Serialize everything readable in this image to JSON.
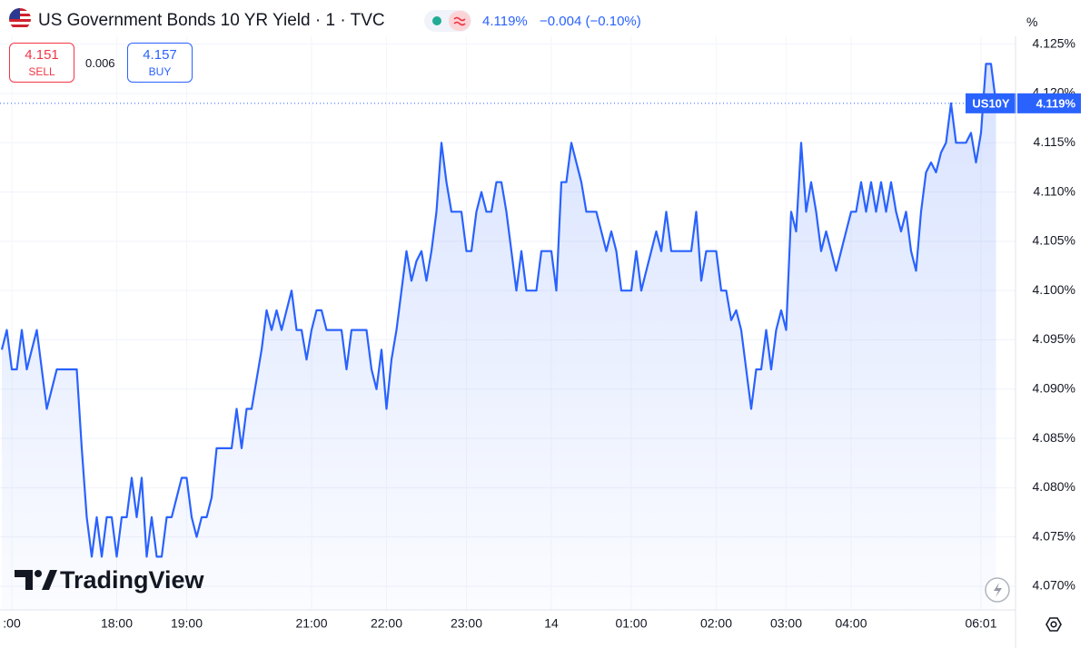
{
  "header": {
    "title": "US Government Bonds 10 YR Yield · 1 · TVC",
    "last": "4.119%",
    "change": "−0.004 (−0.10%)",
    "sell_price": "4.151",
    "sell_label": "SELL",
    "spread": "0.006",
    "buy_price": "4.157",
    "buy_label": "BUY",
    "unit": "%",
    "branding": "TradingView"
  },
  "chart_data": {
    "type": "line",
    "color": "#2962ff",
    "grid": true,
    "symbol_tag": "US10Y",
    "last_price": {
      "value": 4.119,
      "label": "4.119%"
    },
    "ylim": [
      4.0676,
      4.1258
    ],
    "yticks": [
      {
        "value": 4.07,
        "label": "4.070%"
      },
      {
        "value": 4.075,
        "label": "4.075%"
      },
      {
        "value": 4.08,
        "label": "4.080%"
      },
      {
        "value": 4.085,
        "label": "4.085%"
      },
      {
        "value": 4.09,
        "label": "4.090%"
      },
      {
        "value": 4.095,
        "label": "4.095%"
      },
      {
        "value": 4.1,
        "label": "4.100%"
      },
      {
        "value": 4.105,
        "label": "4.105%"
      },
      {
        "value": 4.11,
        "label": "4.110%"
      },
      {
        "value": 4.115,
        "label": "4.115%"
      },
      {
        "value": 4.12,
        "label": "4.120%"
      },
      {
        "value": 4.125,
        "label": "4.125%"
      }
    ],
    "categories": [
      null,
      null,
      ":00",
      null,
      null,
      null,
      null,
      null,
      null,
      null,
      null,
      null,
      null,
      null,
      null,
      null,
      null,
      null,
      null,
      null,
      null,
      null,
      null,
      "18:00",
      null,
      null,
      null,
      null,
      null,
      null,
      null,
      null,
      null,
      null,
      null,
      null,
      null,
      "19:00",
      null,
      null,
      null,
      null,
      null,
      null,
      null,
      null,
      null,
      null,
      null,
      null,
      null,
      null,
      null,
      null,
      null,
      null,
      null,
      null,
      null,
      null,
      null,
      null,
      "21:00",
      null,
      null,
      null,
      null,
      null,
      null,
      null,
      null,
      null,
      null,
      null,
      null,
      null,
      null,
      "22:00",
      null,
      null,
      null,
      null,
      null,
      null,
      null,
      null,
      null,
      null,
      null,
      null,
      null,
      null,
      null,
      "23:00",
      null,
      null,
      null,
      null,
      null,
      null,
      null,
      null,
      null,
      null,
      null,
      null,
      null,
      null,
      null,
      null,
      "14",
      null,
      null,
      null,
      null,
      null,
      null,
      null,
      null,
      null,
      null,
      null,
      null,
      null,
      null,
      null,
      "01:00",
      null,
      null,
      null,
      null,
      null,
      null,
      null,
      null,
      null,
      null,
      null,
      null,
      null,
      null,
      null,
      null,
      "02:00",
      null,
      null,
      null,
      null,
      null,
      null,
      null,
      null,
      null,
      null,
      null,
      null,
      null,
      "03:00",
      null,
      null,
      null,
      null,
      null,
      null,
      null,
      null,
      null,
      null,
      null,
      null,
      "04:00",
      null,
      null,
      null,
      null,
      null,
      null,
      null,
      null,
      null,
      null,
      null,
      null,
      null,
      null,
      null,
      null,
      null,
      null,
      null,
      null,
      null,
      null,
      null,
      null,
      null,
      "06:01",
      null,
      null,
      null
    ],
    "values": [
      4.094,
      4.096,
      4.092,
      4.092,
      4.096,
      4.092,
      4.094,
      4.096,
      4.092,
      4.088,
      4.09,
      4.092,
      4.092,
      4.092,
      4.092,
      4.092,
      4.084,
      4.077,
      4.073,
      4.077,
      4.073,
      4.077,
      4.077,
      4.073,
      4.077,
      4.077,
      4.081,
      4.077,
      4.081,
      4.073,
      4.077,
      4.073,
      4.073,
      4.077,
      4.077,
      4.079,
      4.081,
      4.081,
      4.077,
      4.075,
      4.077,
      4.077,
      4.079,
      4.084,
      4.084,
      4.084,
      4.084,
      4.088,
      4.084,
      4.088,
      4.088,
      4.091,
      4.094,
      4.098,
      4.096,
      4.098,
      4.096,
      4.098,
      4.1,
      4.096,
      4.096,
      4.093,
      4.096,
      4.098,
      4.098,
      4.096,
      4.096,
      4.096,
      4.096,
      4.092,
      4.096,
      4.096,
      4.096,
      4.096,
      4.092,
      4.09,
      4.094,
      4.088,
      4.093,
      4.096,
      4.1,
      4.104,
      4.101,
      4.103,
      4.104,
      4.101,
      4.104,
      4.108,
      4.115,
      4.111,
      4.108,
      4.108,
      4.108,
      4.104,
      4.104,
      4.108,
      4.11,
      4.108,
      4.108,
      4.111,
      4.111,
      4.108,
      4.104,
      4.1,
      4.104,
      4.1,
      4.1,
      4.1,
      4.104,
      4.104,
      4.104,
      4.1,
      4.111,
      4.111,
      4.115,
      4.113,
      4.111,
      4.108,
      4.108,
      4.108,
      4.106,
      4.104,
      4.106,
      4.104,
      4.1,
      4.1,
      4.1,
      4.104,
      4.1,
      4.102,
      4.104,
      4.106,
      4.104,
      4.108,
      4.104,
      4.104,
      4.104,
      4.104,
      4.104,
      4.108,
      4.101,
      4.104,
      4.104,
      4.104,
      4.1,
      4.1,
      4.097,
      4.098,
      4.096,
      4.092,
      4.088,
      4.092,
      4.092,
      4.096,
      4.092,
      4.096,
      4.098,
      4.096,
      4.108,
      4.106,
      4.115,
      4.108,
      4.111,
      4.108,
      4.104,
      4.106,
      4.104,
      4.102,
      4.104,
      4.106,
      4.108,
      4.108,
      4.111,
      4.108,
      4.111,
      4.108,
      4.111,
      4.108,
      4.111,
      4.108,
      4.106,
      4.108,
      4.104,
      4.102,
      4.108,
      4.112,
      4.113,
      4.112,
      4.114,
      4.115,
      4.119,
      4.115,
      4.115,
      4.115,
      4.116,
      4.113,
      4.116,
      4.123,
      4.123,
      4.119
    ]
  }
}
